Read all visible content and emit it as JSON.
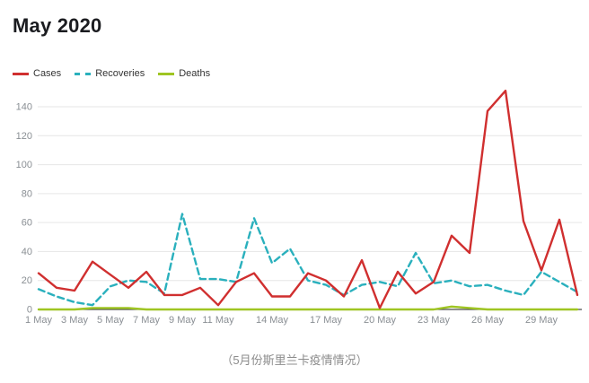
{
  "title": "May 2020",
  "caption": "（5月份斯里兰卡疫情情况）",
  "legend": [
    {
      "label": "Cases",
      "color": "#d02f2f",
      "style": "solid"
    },
    {
      "label": "Recoveries",
      "color": "#2ab0bd",
      "style": "dashed"
    },
    {
      "label": "Deaths",
      "color": "#9fc522",
      "style": "solid"
    }
  ],
  "colors": {
    "cases": "#d02f2f",
    "recoveries": "#2ab0bd",
    "deaths": "#9fc522",
    "gridline": "#e6e6e6",
    "axis_line": "#4c4c4c",
    "tick_label": "#8a8f94",
    "title_text": "#1b1c20",
    "caption_text": "#8c8c8c"
  },
  "chart_data": {
    "type": "line",
    "title": "May 2020",
    "x_unit": "day of May 2020",
    "x_days": [
      1,
      2,
      3,
      4,
      5,
      6,
      7,
      8,
      9,
      10,
      11,
      12,
      13,
      14,
      15,
      16,
      17,
      18,
      19,
      20,
      21,
      22,
      23,
      24,
      25,
      26,
      27,
      28,
      29,
      30,
      31
    ],
    "x_tick_days": [
      1,
      3,
      5,
      7,
      9,
      11,
      14,
      17,
      20,
      23,
      26,
      29
    ],
    "x_tick_labels": [
      "1 May",
      "3 May",
      "5 May",
      "7 May",
      "9 May",
      "11 May",
      "14 May",
      "17 May",
      "20 May",
      "23 May",
      "26 May",
      "29 May"
    ],
    "y_ticks": [
      0,
      20,
      40,
      60,
      80,
      100,
      120,
      140
    ],
    "ylim": [
      0,
      155
    ],
    "grid": true,
    "legend_position": "top-left",
    "series": [
      {
        "name": "Cases",
        "color": "#d02f2f",
        "line_style": "solid",
        "values": [
          25,
          15,
          13,
          33,
          24,
          15,
          26,
          10,
          10,
          15,
          3,
          19,
          25,
          9,
          9,
          25,
          20,
          9,
          34,
          1,
          26,
          11,
          19,
          51,
          39,
          137,
          151,
          61,
          27,
          62,
          10
        ]
      },
      {
        "name": "Recoveries",
        "color": "#2ab0bd",
        "line_style": "dashed",
        "values": [
          14,
          9,
          5,
          3,
          16,
          20,
          19,
          11,
          66,
          21,
          21,
          19,
          63,
          32,
          42,
          20,
          17,
          10,
          17,
          19,
          16,
          39,
          18,
          20,
          16,
          17,
          13,
          10,
          26,
          19,
          12
        ]
      },
      {
        "name": "Deaths",
        "color": "#9fc522",
        "line_style": "solid",
        "values": [
          0,
          0,
          0,
          1,
          1,
          1,
          0,
          0,
          0,
          0,
          0,
          0,
          0,
          0,
          0,
          0,
          0,
          0,
          0,
          0,
          0,
          0,
          0,
          2,
          1,
          0,
          0,
          0,
          0,
          0,
          0
        ]
      }
    ]
  }
}
